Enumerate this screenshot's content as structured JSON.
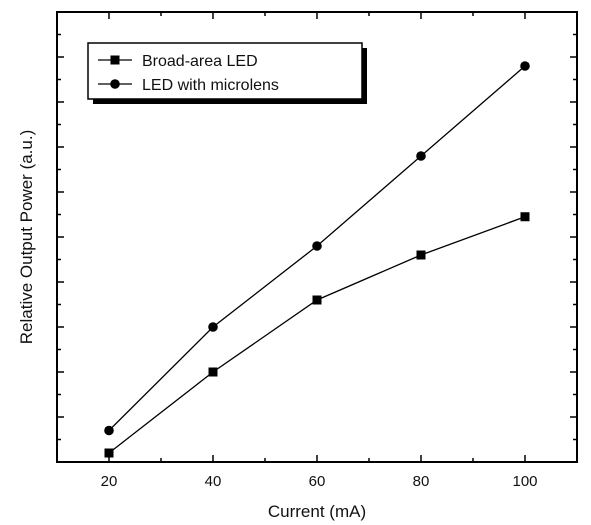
{
  "chart_data": {
    "type": "line",
    "xlabel": "Current (mA)",
    "ylabel": "Relative Output Power (a.u.)",
    "x": [
      20,
      40,
      60,
      80,
      100
    ],
    "xlim": [
      10,
      110
    ],
    "ylim": [
      0,
      10
    ],
    "y_tick_labels_shown": false,
    "grid": false,
    "legend_position": "top-left",
    "series": [
      {
        "name": "Broad-area LED",
        "marker": "square",
        "values": [
          0.2,
          2.0,
          3.6,
          4.6,
          5.45
        ]
      },
      {
        "name": "LED with microlens",
        "marker": "circle",
        "values": [
          0.7,
          3.0,
          4.8,
          6.8,
          8.8
        ]
      }
    ],
    "colors": {
      "line": "#000000",
      "marker": "#000000"
    }
  }
}
